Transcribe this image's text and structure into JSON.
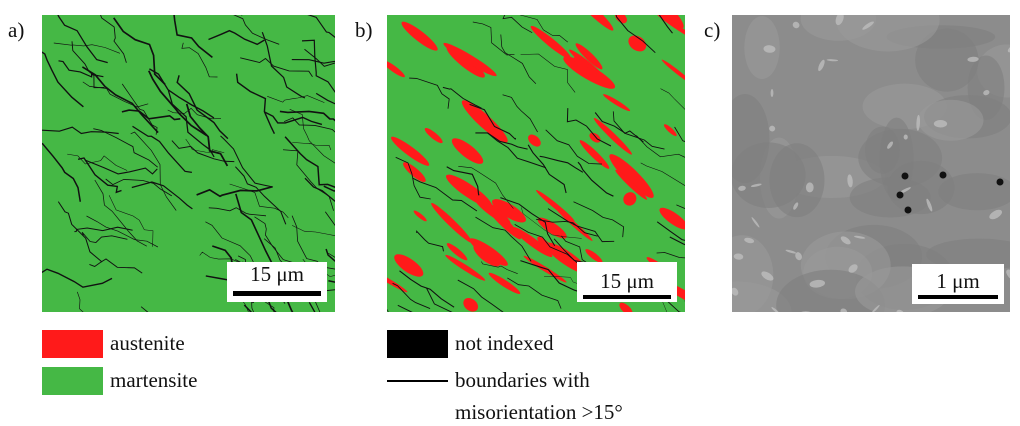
{
  "panels": [
    {
      "label": "a)",
      "scale_bar": "15 μm"
    },
    {
      "label": "b)",
      "scale_bar": "15 μm"
    },
    {
      "label": "c)",
      "scale_bar": "1 μm"
    }
  ],
  "legend_a": {
    "items": [
      "austenite",
      "martensite"
    ]
  },
  "legend_b": {
    "items": [
      "not indexed",
      "boundaries with",
      "misorientation >15°"
    ]
  }
}
